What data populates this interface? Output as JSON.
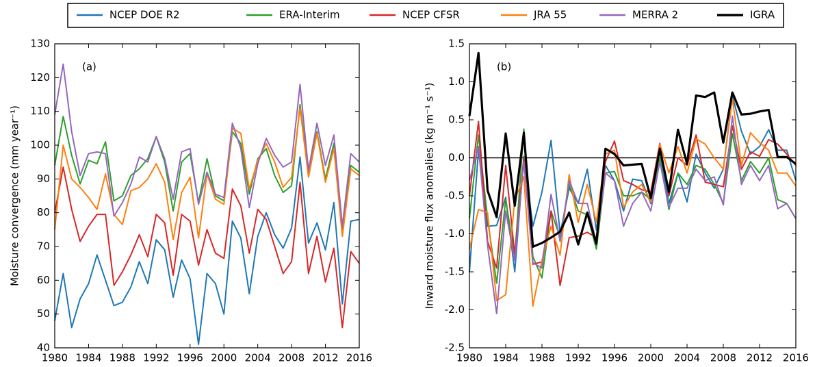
{
  "chart_data": [
    {
      "type": "line",
      "annotation": "(a)",
      "ylabel": "Moisture convergence (mm year⁻¹)",
      "x": [
        1980,
        1981,
        1982,
        1983,
        1984,
        1985,
        1986,
        1987,
        1988,
        1989,
        1990,
        1991,
        1992,
        1993,
        1994,
        1995,
        1996,
        1997,
        1998,
        1999,
        2000,
        2001,
        2002,
        2003,
        2004,
        2005,
        2006,
        2007,
        2008,
        2009,
        2010,
        2011,
        2012,
        2013,
        2014,
        2015,
        2016
      ],
      "xlim": [
        1980,
        2016
      ],
      "xticks": [
        1980,
        1984,
        1988,
        1992,
        1996,
        2000,
        2004,
        2008,
        2012,
        2016
      ],
      "ylim": [
        40,
        130
      ],
      "yticks": [
        40,
        50,
        60,
        70,
        80,
        90,
        100,
        110,
        120,
        130
      ],
      "series": [
        {
          "name": "NCEP DOE R2",
          "color": "#1f77b4",
          "values": [
            48,
            62,
            46,
            54.5,
            59,
            67.5,
            60,
            52.5,
            53.5,
            58,
            65.5,
            59,
            72,
            69,
            55,
            66,
            60.5,
            41,
            62,
            59,
            50,
            77.5,
            72.5,
            56,
            73,
            80,
            73.5,
            69.5,
            75.5,
            96.5,
            71,
            77,
            69,
            83,
            53,
            77.5,
            78
          ]
        },
        {
          "name": "ERA-Interim",
          "color": "#2ca02c",
          "values": [
            94,
            108.5,
            97,
            88.5,
            95.5,
            94.5,
            101,
            83.5,
            85,
            91,
            93,
            96,
            102.5,
            95,
            80.5,
            95,
            97.5,
            83,
            96,
            85,
            83.5,
            104,
            100.5,
            85.5,
            96,
            99,
            91,
            86,
            88,
            112,
            92,
            104,
            90,
            100.5,
            75,
            94,
            92
          ]
        },
        {
          "name": "NCEP CFSR",
          "color": "#d62728",
          "values": [
            80,
            93.5,
            81,
            71.5,
            76,
            79.5,
            79.5,
            58.5,
            62.5,
            67.5,
            73.5,
            67,
            79.5,
            77,
            61.5,
            79.5,
            77.5,
            64.5,
            75,
            68,
            66.5,
            87,
            82,
            68,
            81,
            78,
            70,
            62,
            65.5,
            89,
            62,
            73,
            59.5,
            69.5,
            46,
            68.5,
            65
          ]
        },
        {
          "name": "JRA 55",
          "color": "#ff7f0e",
          "values": [
            75,
            100,
            90,
            87.5,
            84.5,
            81,
            91.5,
            79.5,
            76.5,
            86.5,
            87.5,
            90,
            94.5,
            89,
            72,
            86,
            90.5,
            72.5,
            91.5,
            84,
            82.5,
            105,
            103.5,
            87,
            95.5,
            100.5,
            95,
            87.5,
            90.5,
            111,
            90.5,
            103.5,
            89,
            99,
            73,
            93,
            91
          ]
        },
        {
          "name": "MERRA 2",
          "color": "#9467bd",
          "values": [
            109,
            124,
            104,
            91,
            97.5,
            98,
            97.5,
            79,
            83,
            88.5,
            96.5,
            95,
            102.5,
            96,
            84,
            98,
            99,
            82.5,
            92,
            85.5,
            84.5,
            106.5,
            99,
            81.5,
            94.5,
            102,
            97,
            93.5,
            95,
            118,
            92.5,
            106.5,
            94,
            103,
            76,
            97.5,
            95
          ]
        }
      ]
    },
    {
      "type": "line",
      "annotation": "(b)",
      "ylabel": "Inward moisture flux anomalies (kg m⁻¹ s⁻¹)",
      "reference_line": 0,
      "x": [
        1980,
        1981,
        1982,
        1983,
        1984,
        1985,
        1986,
        1987,
        1988,
        1989,
        1990,
        1991,
        1992,
        1993,
        1994,
        1995,
        1996,
        1997,
        1998,
        1999,
        2000,
        2001,
        2002,
        2003,
        2004,
        2005,
        2006,
        2007,
        2008,
        2009,
        2010,
        2011,
        2012,
        2013,
        2014,
        2015,
        2016
      ],
      "xlim": [
        1980,
        2016
      ],
      "xticks": [
        1980,
        1984,
        1988,
        1992,
        1996,
        2000,
        2004,
        2008,
        2012,
        2016
      ],
      "ylim": [
        -2.5,
        1.5
      ],
      "yticks": [
        -2.5,
        {
          "value": -2,
          "label": "-2.0"
        },
        -1.5,
        {
          "value": -1,
          "label": "-1.0"
        },
        -0.5,
        {
          "value": 0,
          "label": "0.0"
        },
        0.5,
        {
          "value": 1,
          "label": "1.0"
        },
        1.5
      ],
      "series": [
        {
          "name": "NCEP DOE R2",
          "color": "#1f77b4",
          "values": [
            -1.5,
            0.1,
            -0.9,
            -0.89,
            -0.52,
            -1.5,
            0.02,
            -0.9,
            -0.45,
            0.23,
            -1.0,
            -0.4,
            -0.6,
            -0.15,
            -0.95,
            -0.1,
            -0.3,
            -0.7,
            -0.28,
            -0.3,
            -0.6,
            0.1,
            -0.6,
            -0.2,
            -0.58,
            0.05,
            -0.2,
            -0.4,
            -0.15,
            0.82,
            0.35,
            0.05,
            0.15,
            0.37,
            0.1,
            0.1,
            -0.3
          ]
        },
        {
          "name": "ERA-Interim",
          "color": "#2ca02c",
          "values": [
            -0.8,
            0.3,
            -0.8,
            -1.65,
            -0.55,
            -1.3,
            0.38,
            -1.3,
            -1.58,
            -0.7,
            -1.05,
            -0.35,
            -0.7,
            -0.75,
            -1.2,
            -0.2,
            -0.18,
            -0.5,
            -0.5,
            -0.45,
            -0.55,
            0.0,
            -0.68,
            -0.2,
            -0.35,
            -0.1,
            -0.15,
            -0.35,
            -0.6,
            0.32,
            -0.3,
            -0.05,
            -0.2,
            0.0,
            -0.55,
            -0.6,
            -0.8
          ]
        },
        {
          "name": "NCEP CFSR",
          "color": "#d62728",
          "values": [
            -0.5,
            0.48,
            -1.1,
            -1.45,
            -0.1,
            -1.28,
            0.0,
            -1.4,
            -1.37,
            -0.7,
            -1.68,
            -1.05,
            -1.03,
            -0.98,
            -1.05,
            -0.05,
            0.22,
            -0.3,
            -0.35,
            -0.42,
            -0.45,
            0.19,
            -0.5,
            0.0,
            -0.1,
            0.3,
            -0.32,
            -0.35,
            -0.38,
            0.42,
            -0.15,
            0.08,
            0.02,
            0.24,
            0.18,
            0.05,
            -0.1
          ]
        },
        {
          "name": "JRA 55",
          "color": "#ff7f0e",
          "values": [
            -1.2,
            -0.68,
            -0.72,
            -1.88,
            -1.8,
            -0.55,
            -0.25,
            -1.95,
            -1.35,
            -0.9,
            -1.28,
            -0.22,
            -0.85,
            -0.35,
            -0.85,
            0.05,
            0.1,
            -0.65,
            -0.45,
            -0.35,
            -0.58,
            0.18,
            -0.2,
            0.15,
            -0.2,
            0.25,
            0.18,
            0.0,
            -0.15,
            0.78,
            -0.1,
            0.33,
            0.2,
            0.1,
            -0.2,
            -0.2,
            -0.37
          ]
        },
        {
          "name": "MERRA 2",
          "color": "#9467bd",
          "values": [
            -0.3,
            0.15,
            -1.15,
            -2.05,
            -0.7,
            -1.35,
            -0.05,
            -1.38,
            -1.45,
            -0.48,
            -1.1,
            -0.3,
            -0.6,
            -0.6,
            -1.12,
            -0.2,
            -0.3,
            -0.9,
            -0.6,
            -0.45,
            -0.7,
            -0.05,
            -0.65,
            -0.4,
            -0.4,
            -0.15,
            -0.3,
            -0.25,
            -0.62,
            0.55,
            -0.35,
            -0.1,
            -0.3,
            -0.1,
            -0.67,
            -0.6,
            -0.8
          ]
        },
        {
          "name": "IGRA",
          "color": "#000000",
          "values": [
            0.55,
            1.38,
            -0.43,
            -0.78,
            0.32,
            -0.63,
            0.33,
            -1.17,
            -1.12,
            -1.05,
            -0.97,
            -0.72,
            -1.14,
            -0.72,
            -1.13,
            0.12,
            0.05,
            -0.1,
            -0.09,
            -0.08,
            -0.53,
            0.12,
            -0.45,
            0.37,
            -0.08,
            0.82,
            0.8,
            0.86,
            0.2,
            0.86,
            0.57,
            0.58,
            0.61,
            0.63,
            0.01,
            0.01,
            -0.08
          ]
        }
      ]
    }
  ]
}
